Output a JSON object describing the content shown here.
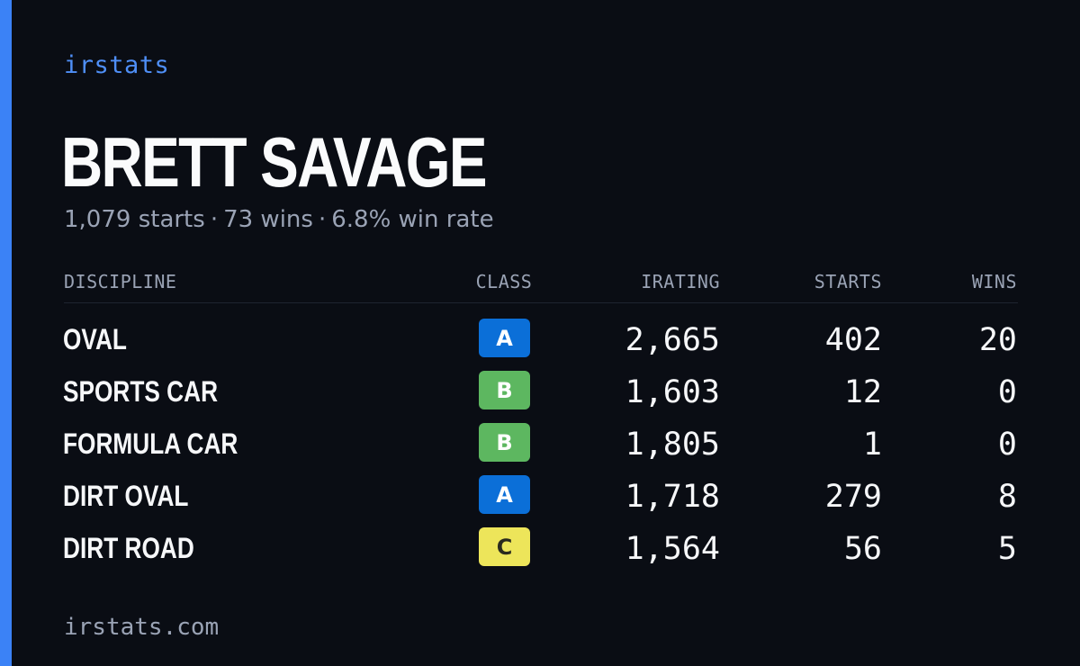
{
  "brand": "irstats",
  "driver": {
    "name": "BRETT SAVAGE"
  },
  "summary": {
    "starts": "1,079 starts",
    "wins": "73 wins",
    "win_rate": "6.8% win rate",
    "separator": "·"
  },
  "table": {
    "headers": {
      "discipline": "DISCIPLINE",
      "class": "CLASS",
      "irating": "IRATING",
      "starts": "STARTS",
      "wins": "WINS"
    },
    "rows": [
      {
        "discipline": "OVAL",
        "class": "A",
        "irating": "2,665",
        "starts": "402",
        "wins": "20"
      },
      {
        "discipline": "SPORTS CAR",
        "class": "B",
        "irating": "1,603",
        "starts": "12",
        "wins": "0"
      },
      {
        "discipline": "FORMULA CAR",
        "class": "B",
        "irating": "1,805",
        "starts": "1",
        "wins": "0"
      },
      {
        "discipline": "DIRT OVAL",
        "class": "A",
        "irating": "1,718",
        "starts": "279",
        "wins": "8"
      },
      {
        "discipline": "DIRT ROAD",
        "class": "C",
        "irating": "1,564",
        "starts": "56",
        "wins": "5"
      }
    ]
  },
  "class_colors": {
    "A": "#0b6fd8",
    "B": "#5db760",
    "C": "#ede55a"
  },
  "theme": {
    "background": "#0a0d14",
    "accent": "#3b82f6",
    "muted_text": "#9aa3b5"
  },
  "footer": {
    "url": "irstats.com"
  }
}
